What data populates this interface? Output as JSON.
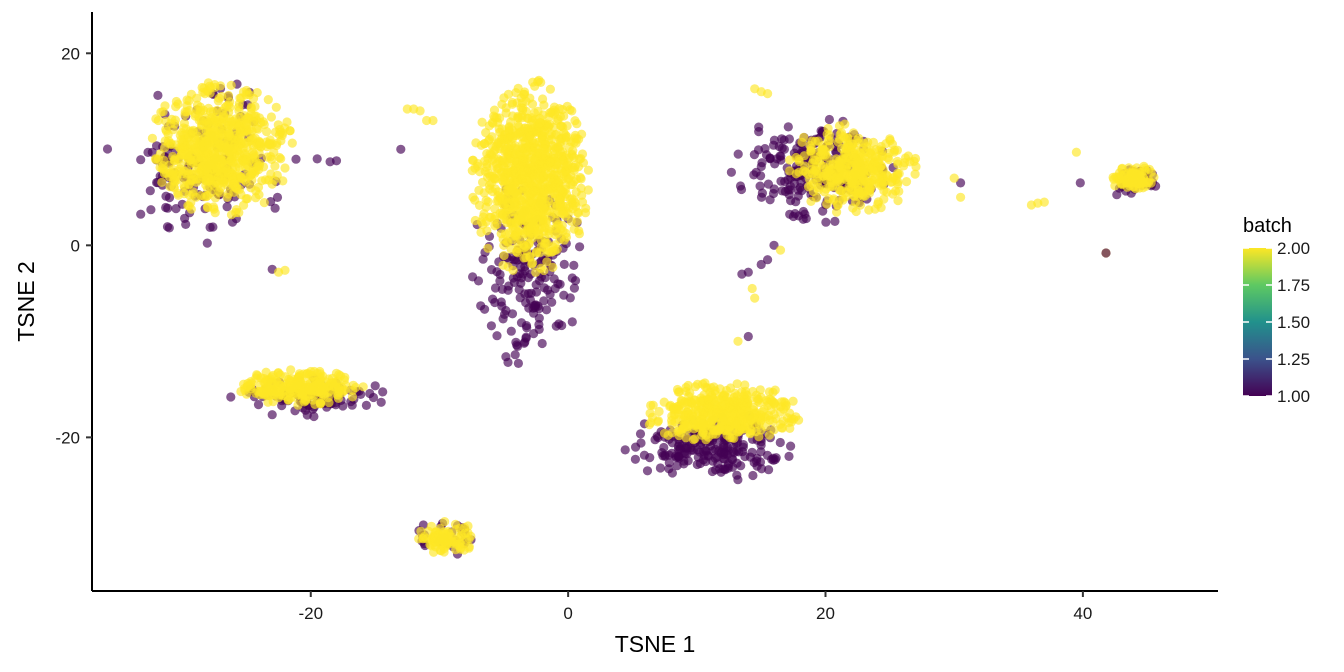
{
  "chart_data": {
    "type": "scatter",
    "title": "",
    "xlabel": "TSNE 1",
    "ylabel": "TSNE 2",
    "xlim": [
      -37,
      50.5
    ],
    "ylim": [
      -36,
      24.3
    ],
    "xticks": [
      -20,
      0,
      20,
      40
    ],
    "yticks": [
      -20,
      0,
      20
    ],
    "grid": false,
    "legend": {
      "title": "batch",
      "type": "colorbar",
      "position": "right",
      "colormap": "viridis",
      "colors": [
        "#440154",
        "#3b528b",
        "#21918c",
        "#5ec962",
        "#fde725"
      ],
      "range": [
        1.0,
        2.0
      ],
      "tick_values": [
        2.0,
        1.75,
        1.5,
        1.25,
        1.0
      ],
      "tick_labels": [
        "2.00",
        "1.75",
        "1.50",
        "1.25",
        "1.00"
      ]
    },
    "series_colors": {
      "batch_1": "#440154",
      "batch_2": "#fde725"
    },
    "point_alpha": 0.65,
    "clusters": [
      {
        "cx": -27,
        "cy": 10,
        "rx": 6,
        "ry": 7.5,
        "batch1_n": 150,
        "batch2_n": 650,
        "batch1_spread": 1.2,
        "batch1_shift": [
          -1.5,
          -1.5
        ]
      },
      {
        "cx": -3,
        "cy": 7,
        "rx": 5,
        "ry": 11,
        "batch1_n": 180,
        "batch2_n": 900,
        "batch1_spread": 0.9,
        "batch1_shift": [
          0,
          -10
        ]
      },
      {
        "cx": -21,
        "cy": -14.8,
        "rx": 5.5,
        "ry": 2,
        "batch1_n": 110,
        "batch2_n": 260,
        "batch1_spread": 1.1,
        "batch1_shift": [
          1,
          -1
        ]
      },
      {
        "cx": -9.5,
        "cy": -30.5,
        "rx": 2.5,
        "ry": 2,
        "batch1_n": 25,
        "batch2_n": 90,
        "batch1_spread": 1.1,
        "batch1_shift": [
          0,
          0
        ]
      },
      {
        "cx": 22,
        "cy": 8,
        "rx": 5.5,
        "ry": 5,
        "batch1_n": 220,
        "batch2_n": 360,
        "batch1_spread": 1.1,
        "batch1_shift": [
          -3,
          0
        ]
      },
      {
        "cx": 12,
        "cy": -17.5,
        "rx": 6.5,
        "ry": 3.5,
        "batch1_n": 210,
        "batch2_n": 420,
        "batch1_spread": 1.0,
        "batch1_shift": [
          -1,
          -3.5
        ]
      },
      {
        "cx": 44,
        "cy": 7,
        "rx": 2,
        "ry": 1.5,
        "batch1_n": 40,
        "batch2_n": 80,
        "batch1_spread": 1.1,
        "batch1_shift": [
          0,
          -0.5
        ]
      }
    ],
    "outliers": [
      {
        "x": -12.5,
        "y": 14.2,
        "batch": 2
      },
      {
        "x": -12,
        "y": 14.2,
        "batch": 2
      },
      {
        "x": -11.5,
        "y": 14,
        "batch": 2
      },
      {
        "x": -13,
        "y": 10,
        "batch": 1
      },
      {
        "x": -10.5,
        "y": 13,
        "batch": 2
      },
      {
        "x": -11,
        "y": 13,
        "batch": 2
      },
      {
        "x": 14.5,
        "y": 16.3,
        "batch": 2
      },
      {
        "x": 15,
        "y": 16,
        "batch": 2
      },
      {
        "x": 15.5,
        "y": 15.8,
        "batch": 2
      },
      {
        "x": 13.5,
        "y": -3,
        "batch": 1
      },
      {
        "x": 14,
        "y": -2.8,
        "batch": 1
      },
      {
        "x": 14.3,
        "y": -4.5,
        "batch": 2
      },
      {
        "x": 14.5,
        "y": -5.5,
        "batch": 2
      },
      {
        "x": 15,
        "y": -2,
        "batch": 1
      },
      {
        "x": 15.5,
        "y": -1.5,
        "batch": 1
      },
      {
        "x": 16,
        "y": 0,
        "batch": 1
      },
      {
        "x": 16.5,
        "y": -0.5,
        "batch": 2
      },
      {
        "x": 13.2,
        "y": -10,
        "batch": 2
      },
      {
        "x": 14,
        "y": -9.5,
        "batch": 1
      },
      {
        "x": 36,
        "y": 4.2,
        "batch": 2
      },
      {
        "x": 36.5,
        "y": 4.4,
        "batch": 2
      },
      {
        "x": 37,
        "y": 4.5,
        "batch": 2
      },
      {
        "x": 39.5,
        "y": 9.7,
        "batch": 2
      },
      {
        "x": 39.8,
        "y": 6.5,
        "batch": 1
      },
      {
        "x": 41.8,
        "y": -0.8,
        "batch": 2
      },
      {
        "x": 41.8,
        "y": -0.8,
        "batch": 1
      },
      {
        "x": -19.5,
        "y": 9,
        "batch": 1
      },
      {
        "x": -18.5,
        "y": 8.7,
        "batch": 1
      },
      {
        "x": -18,
        "y": 8.8,
        "batch": 1
      },
      {
        "x": -23,
        "y": -2.5,
        "batch": 1
      },
      {
        "x": -22.5,
        "y": -2.8,
        "batch": 2
      },
      {
        "x": -22,
        "y": -2.6,
        "batch": 2
      },
      {
        "x": 30.5,
        "y": 5,
        "batch": 2
      },
      {
        "x": 30.5,
        "y": 6.5,
        "batch": 1
      },
      {
        "x": 30,
        "y": 7,
        "batch": 2
      }
    ]
  }
}
